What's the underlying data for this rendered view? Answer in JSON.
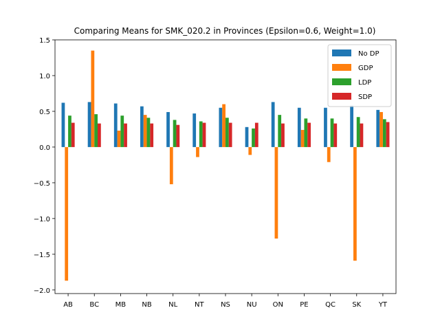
{
  "chart_data": {
    "type": "bar",
    "title": "Comparing Means for SMK_020.2 in Provinces (Epsilon=0.6, Weight=1.0)",
    "xlabel": "",
    "ylabel": "",
    "ylim": [
      -2.05,
      1.5
    ],
    "yticks": [
      1.5,
      1.0,
      0.5,
      0.0,
      -0.5,
      -1.0,
      -1.5,
      -2.0
    ],
    "ytick_labels": [
      "1.5",
      "1.0",
      "0.5",
      "0.0",
      "−0.5",
      "−1.0",
      "−1.5",
      "−2.0"
    ],
    "categories": [
      "AB",
      "BC",
      "MB",
      "NB",
      "NL",
      "NT",
      "NS",
      "NU",
      "ON",
      "PE",
      "QC",
      "SK",
      "YT"
    ],
    "grid": false,
    "legend_position": "top-right",
    "series": [
      {
        "name": "No DP",
        "color": "#1f77b4",
        "values": [
          0.62,
          0.63,
          0.61,
          0.57,
          0.49,
          0.47,
          0.55,
          0.28,
          0.63,
          0.55,
          0.55,
          0.58,
          0.52
        ]
      },
      {
        "name": "GDP",
        "color": "#ff7f0e",
        "values": [
          -1.87,
          1.35,
          0.23,
          0.45,
          -0.52,
          -0.14,
          0.6,
          -0.11,
          -1.28,
          0.24,
          -0.21,
          -1.59,
          0.49
        ]
      },
      {
        "name": "LDP",
        "color": "#2ca02c",
        "values": [
          0.44,
          0.46,
          0.44,
          0.41,
          0.38,
          0.36,
          0.41,
          0.26,
          0.45,
          0.4,
          0.4,
          0.42,
          0.39
        ]
      },
      {
        "name": "SDP",
        "color": "#d62728",
        "values": [
          0.34,
          0.33,
          0.33,
          0.33,
          0.31,
          0.34,
          0.34,
          0.34,
          0.33,
          0.34,
          0.33,
          0.33,
          0.35
        ]
      }
    ]
  }
}
